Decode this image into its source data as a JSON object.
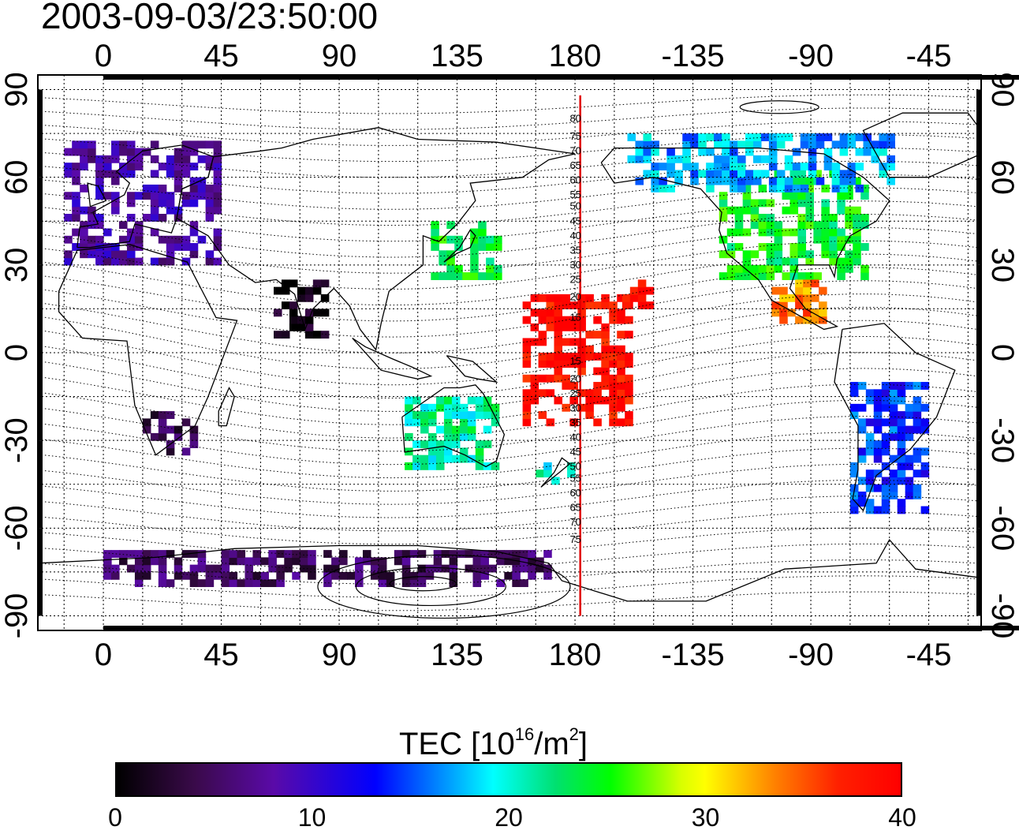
{
  "timestamp": "2003-09-03/23:50:00",
  "map": {
    "lon_ticks": [
      {
        "lon": 0,
        "label": "0"
      },
      {
        "lon": 45,
        "label": "45"
      },
      {
        "lon": 90,
        "label": "90"
      },
      {
        "lon": 135,
        "label": "135"
      },
      {
        "lon": 180,
        "label": "180"
      },
      {
        "lon": 225,
        "label": "-135"
      },
      {
        "lon": 270,
        "label": "-90"
      },
      {
        "lon": 315,
        "label": "-45"
      }
    ],
    "lat_ticks": [
      {
        "lat": 90,
        "label": "90"
      },
      {
        "lat": 60,
        "label": "60"
      },
      {
        "lat": 30,
        "label": "30"
      },
      {
        "lat": 0,
        "label": "0"
      },
      {
        "lat": -30,
        "label": "-30"
      },
      {
        "lat": -60,
        "label": "-60"
      },
      {
        "lat": -90,
        "label": "-90"
      }
    ],
    "lon_range": [
      -25,
      335
    ],
    "lat_range": [
      -95,
      95
    ],
    "grid": true,
    "meridian_marker_lon": 182,
    "meridian_color": "#e00000",
    "meridian_north_labels": [
      {
        "label": "80",
        "lat": 80
      },
      {
        "label": "75",
        "lat": 74
      },
      {
        "label": "70",
        "lat": 69
      },
      {
        "label": "65",
        "lat": 64
      },
      {
        "label": "60",
        "lat": 59
      },
      {
        "label": "55",
        "lat": 54
      },
      {
        "label": "50",
        "lat": 50
      },
      {
        "label": "45",
        "lat": 45
      },
      {
        "label": "40",
        "lat": 40
      },
      {
        "label": "35",
        "lat": 35
      },
      {
        "label": "30",
        "lat": 30
      },
      {
        "label": "25",
        "lat": 25
      },
      {
        "label": "20",
        "lat": 19
      },
      {
        "label": "15",
        "lat": 12
      }
    ],
    "meridian_south_labels": [
      {
        "label": "15",
        "lat": -3
      },
      {
        "label": "20",
        "lat": -9
      },
      {
        "label": "25",
        "lat": -14
      },
      {
        "label": "30",
        "lat": -19
      },
      {
        "label": "35",
        "lat": -24
      },
      {
        "label": "40",
        "lat": -29
      },
      {
        "label": "45",
        "lat": -34
      },
      {
        "label": "50",
        "lat": -39
      },
      {
        "label": "55",
        "lat": -43
      },
      {
        "label": "60",
        "lat": -48
      },
      {
        "label": "65",
        "lat": -53
      },
      {
        "label": "70",
        "lat": -58
      },
      {
        "label": "75",
        "lat": -64
      }
    ],
    "tec_regions": [
      {
        "name": "europe",
        "lon": [
          -15,
          45
        ],
        "lat": [
          30,
          72
        ],
        "value": 8
      },
      {
        "name": "north-america",
        "lon": [
          235,
          290
        ],
        "lat": [
          25,
          62
        ],
        "value": 24
      },
      {
        "name": "canada",
        "lon": [
          200,
          300
        ],
        "lat": [
          55,
          75
        ],
        "value": 17
      },
      {
        "name": "japan",
        "lon": [
          125,
          150
        ],
        "lat": [
          25,
          45
        ],
        "value": 24
      },
      {
        "name": "india",
        "lon": [
          65,
          85
        ],
        "lat": [
          5,
          25
        ],
        "value": 1
      },
      {
        "name": "south-africa",
        "lon": [
          15,
          35
        ],
        "lat": [
          -35,
          -20
        ],
        "value": 4
      },
      {
        "name": "central-pacific",
        "lon": [
          160,
          200
        ],
        "lat": [
          -25,
          20
        ],
        "value": 39
      },
      {
        "name": "hawaii",
        "lon": [
          195,
          210
        ],
        "lat": [
          15,
          25
        ],
        "value": 39
      },
      {
        "name": "australia",
        "lon": [
          115,
          150
        ],
        "lat": [
          -40,
          -15
        ],
        "value": 21
      },
      {
        "name": "new-zealand",
        "lon": [
          165,
          180
        ],
        "lat": [
          -45,
          -35
        ],
        "value": 20
      },
      {
        "name": "south-america",
        "lon": [
          285,
          315
        ],
        "lat": [
          -55,
          -10
        ],
        "value": 14
      },
      {
        "name": "antarctica",
        "lon": [
          0,
          170
        ],
        "lat": [
          -80,
          -68
        ],
        "value": 5
      },
      {
        "name": "mexico",
        "lon": [
          255,
          275
        ],
        "lat": [
          10,
          25
        ],
        "value": 34
      }
    ]
  },
  "colorbar": {
    "title": "TEC  [10",
    "unit_exp": "16",
    "unit_rest": "/m",
    "unit_sq": "2",
    "unit_close": "]",
    "min": 0,
    "max": 40,
    "ticks": [
      {
        "value": 0,
        "label": "0"
      },
      {
        "value": 10,
        "label": "10"
      },
      {
        "value": 20,
        "label": "20"
      },
      {
        "value": 30,
        "label": "30"
      },
      {
        "value": 40,
        "label": "40"
      }
    ]
  }
}
